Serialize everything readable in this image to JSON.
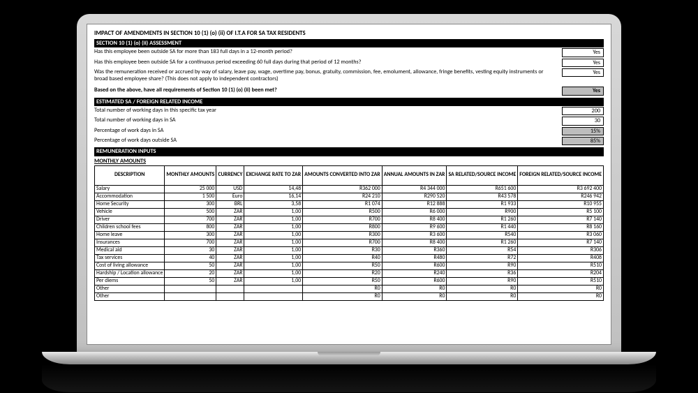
{
  "main_title": "IMPACT OF AMENDMENTS IN SECTION 10 (1) (o) (ii) OF I.T.A FOR SA TAX RESIDENTS",
  "section1": {
    "header": "SECTION 10 (1) (o) (ii) ASSESSMENT",
    "q1": "Has this employee been outside SA for more than 183 full days in a 12-month period?",
    "a1": "Yes",
    "q2": "Has this employee been outside SA for a continuous period exceeding 60 full days during that period of 12 months?",
    "a2": "Yes",
    "q3": "Was the remuneration received or accrued by way of salary, leave pay, wage, overtime pay, bonus, gratuity, commission, fee, emolument, allowance, fringe benefits,  vesting equity instruments or broad based employee share? (This does not apply to independent contractors)",
    "a3": "Yes",
    "q4": "Based on the above, have all requirements of Section 10 (1) (o) (ii) been met?",
    "a4": "Yes"
  },
  "section2": {
    "header": "ESTIMATED SA / FOREIGN RELATED INCOME",
    "r1q": "Total number of working days in this specific tax year",
    "r1v": "200",
    "r2q": "Total number of working days in SA",
    "r2v": "30",
    "r3q": "Percentage of work days in SA",
    "r3v": "15%",
    "r4q": "Percentage of work days outside SA",
    "r4v": "85%"
  },
  "section3": {
    "header": "REMUNERATION INPUTS",
    "subheader": "MONTHLY AMOUNTS",
    "cols": {
      "desc": "DESCRIPTION",
      "monthly": "MONTHLY AMOUNTS",
      "currency": "CURRENCY",
      "exch": "EXCHANGE RATE TO ZAR",
      "conv": "AMOUNTS CONVERTED INTO ZAR",
      "annual": "ANNUAL AMOUNTS IN ZAR",
      "sa": "SA RELATED/SOURCE INCOME",
      "foreign": "FOREIGN RELATED/SOURCE INCOME"
    },
    "rows": [
      {
        "d": "Salary",
        "m": "25 000",
        "c": "USD",
        "e": "14,48",
        "cv": "R362 000",
        "an": "R4 344 000",
        "sa": "R651 600",
        "fo": "R3 692 400"
      },
      {
        "d": "Accommodation",
        "m": "1 500",
        "c": "Euro",
        "e": "16,14",
        "cv": "R24 210",
        "an": "R290 520",
        "sa": "R43 578",
        "fo": "R246 942"
      },
      {
        "d": "Home Security",
        "m": "300",
        "c": "BRL",
        "e": "3,58",
        "cv": "R1 074",
        "an": "R12 888",
        "sa": "R1 933",
        "fo": "R10 955"
      },
      {
        "d": "Vehicle",
        "m": "500",
        "c": "ZAR",
        "e": "1,00",
        "cv": "R500",
        "an": "R6 000",
        "sa": "R900",
        "fo": "R5 100"
      },
      {
        "d": "Driver",
        "m": "700",
        "c": "ZAR",
        "e": "1,00",
        "cv": "R700",
        "an": "R8 400",
        "sa": "R1 260",
        "fo": "R7 140"
      },
      {
        "d": "Children school fees",
        "m": "800",
        "c": "ZAR",
        "e": "1,00",
        "cv": "R800",
        "an": "R9 600",
        "sa": "R1 440",
        "fo": "R8 160"
      },
      {
        "d": "Home leave",
        "m": "300",
        "c": "ZAR",
        "e": "1,00",
        "cv": "R300",
        "an": "R3 600",
        "sa": "R540",
        "fo": "R3 060"
      },
      {
        "d": "Insurances",
        "m": "700",
        "c": "ZAR",
        "e": "1,00",
        "cv": "R700",
        "an": "R8 400",
        "sa": "R1 260",
        "fo": "R7 140"
      },
      {
        "d": "Medical aid",
        "m": "30",
        "c": "ZAR",
        "e": "1,00",
        "cv": "R30",
        "an": "R360",
        "sa": "R54",
        "fo": "R306"
      },
      {
        "d": "Tax services",
        "m": "40",
        "c": "ZAR",
        "e": "1,00",
        "cv": "R40",
        "an": "R480",
        "sa": "R72",
        "fo": "R408"
      },
      {
        "d": "Cost of living allowance",
        "m": "50",
        "c": "ZAR",
        "e": "1,00",
        "cv": "R50",
        "an": "R600",
        "sa": "R90",
        "fo": "R510"
      },
      {
        "d": "Hardship / Location allowance",
        "m": "20",
        "c": "ZAR",
        "e": "1,00",
        "cv": "R20",
        "an": "R240",
        "sa": "R36",
        "fo": "R204"
      },
      {
        "d": "Per diems",
        "m": "50",
        "c": "ZAR",
        "e": "1,00",
        "cv": "R50",
        "an": "R600",
        "sa": "R90",
        "fo": "R510"
      },
      {
        "d": "Other",
        "m": "",
        "c": "",
        "e": "",
        "cv": "R0",
        "an": "R0",
        "sa": "R0",
        "fo": "R0"
      },
      {
        "d": "Other",
        "m": "",
        "c": "",
        "e": "",
        "cv": "R0",
        "an": "R0",
        "sa": "R0",
        "fo": "R0"
      }
    ]
  }
}
